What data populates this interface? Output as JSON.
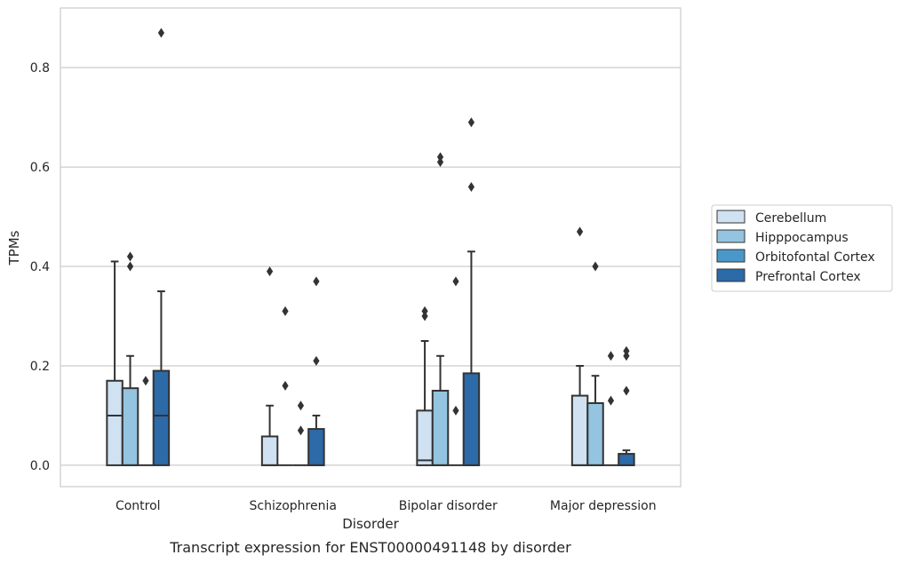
{
  "caption": "Transcript expression for ENST00000491148 by disorder",
  "chart_data": {
    "type": "box",
    "xlabel": "Disorder",
    "ylabel": "TPMs",
    "categories": [
      "Control",
      "Schizophrenia",
      "Bipolar disorder",
      "Major depression"
    ],
    "ylim": [
      -0.043,
      0.92
    ],
    "yticks": [
      0.0,
      0.2,
      0.4,
      0.6,
      0.8
    ],
    "ytick_labels": [
      "0.0",
      "0.2",
      "0.4",
      "0.6",
      "0.8"
    ],
    "grid": "horizontal",
    "legend_position": "right",
    "series": [
      {
        "name": "Cerebellum",
        "color": "#d0e1f2",
        "boxes": [
          {
            "q1": 0.0,
            "median": 0.1,
            "q3": 0.17,
            "whisker_low": 0.0,
            "whisker_high": 0.41,
            "outliers": []
          },
          {
            "q1": 0.0,
            "median": 0.0,
            "q3": 0.058,
            "whisker_low": 0.0,
            "whisker_high": 0.12,
            "outliers": [
              0.39
            ]
          },
          {
            "q1": 0.0,
            "median": 0.01,
            "q3": 0.11,
            "whisker_low": 0.0,
            "whisker_high": 0.25,
            "outliers": [
              0.3,
              0.31
            ]
          },
          {
            "q1": 0.0,
            "median": 0.0,
            "q3": 0.14,
            "whisker_low": 0.0,
            "whisker_high": 0.2,
            "outliers": [
              0.47
            ]
          }
        ]
      },
      {
        "name": "Hipppocampus",
        "color": "#94c4df",
        "boxes": [
          {
            "q1": 0.0,
            "median": 0.0,
            "q3": 0.155,
            "whisker_low": 0.0,
            "whisker_high": 0.22,
            "outliers": [
              0.4,
              0.42
            ]
          },
          {
            "q1": 0.0,
            "median": 0.0,
            "q3": 0.0,
            "whisker_low": 0.0,
            "whisker_high": 0.0,
            "outliers": [
              0.16,
              0.31
            ]
          },
          {
            "q1": 0.0,
            "median": 0.0,
            "q3": 0.15,
            "whisker_low": 0.0,
            "whisker_high": 0.22,
            "outliers": [
              0.61,
              0.62
            ]
          },
          {
            "q1": 0.0,
            "median": 0.0,
            "q3": 0.125,
            "whisker_low": 0.0,
            "whisker_high": 0.18,
            "outliers": [
              0.4
            ]
          }
        ]
      },
      {
        "name": "Orbitofontal Cortex",
        "color": "#4a98c9",
        "boxes": [
          {
            "q1": 0.0,
            "median": 0.0,
            "q3": 0.0,
            "whisker_low": 0.0,
            "whisker_high": 0.0,
            "outliers": [
              0.17
            ]
          },
          {
            "q1": 0.0,
            "median": 0.0,
            "q3": 0.0,
            "whisker_low": 0.0,
            "whisker_high": 0.0,
            "outliers": [
              0.07,
              0.12
            ]
          },
          {
            "q1": 0.0,
            "median": 0.0,
            "q3": 0.0,
            "whisker_low": 0.0,
            "whisker_high": 0.0,
            "outliers": [
              0.11,
              0.37
            ]
          },
          {
            "q1": 0.0,
            "median": 0.0,
            "q3": 0.0,
            "whisker_low": 0.0,
            "whisker_high": 0.0,
            "outliers": [
              0.13,
              0.22
            ]
          }
        ]
      },
      {
        "name": "Prefrontal Cortex",
        "color": "#2c6aa8",
        "boxes": [
          {
            "q1": 0.0,
            "median": 0.1,
            "q3": 0.19,
            "whisker_low": 0.0,
            "whisker_high": 0.35,
            "outliers": [
              0.87
            ]
          },
          {
            "q1": 0.0,
            "median": 0.0,
            "q3": 0.073,
            "whisker_low": 0.0,
            "whisker_high": 0.1,
            "outliers": [
              0.21,
              0.37
            ]
          },
          {
            "q1": 0.0,
            "median": 0.0,
            "q3": 0.185,
            "whisker_low": 0.0,
            "whisker_high": 0.43,
            "outliers": [
              0.56,
              0.69
            ]
          },
          {
            "q1": 0.0,
            "median": 0.0,
            "q3": 0.023,
            "whisker_low": 0.0,
            "whisker_high": 0.03,
            "outliers": [
              0.15,
              0.22,
              0.23
            ]
          }
        ]
      }
    ]
  }
}
